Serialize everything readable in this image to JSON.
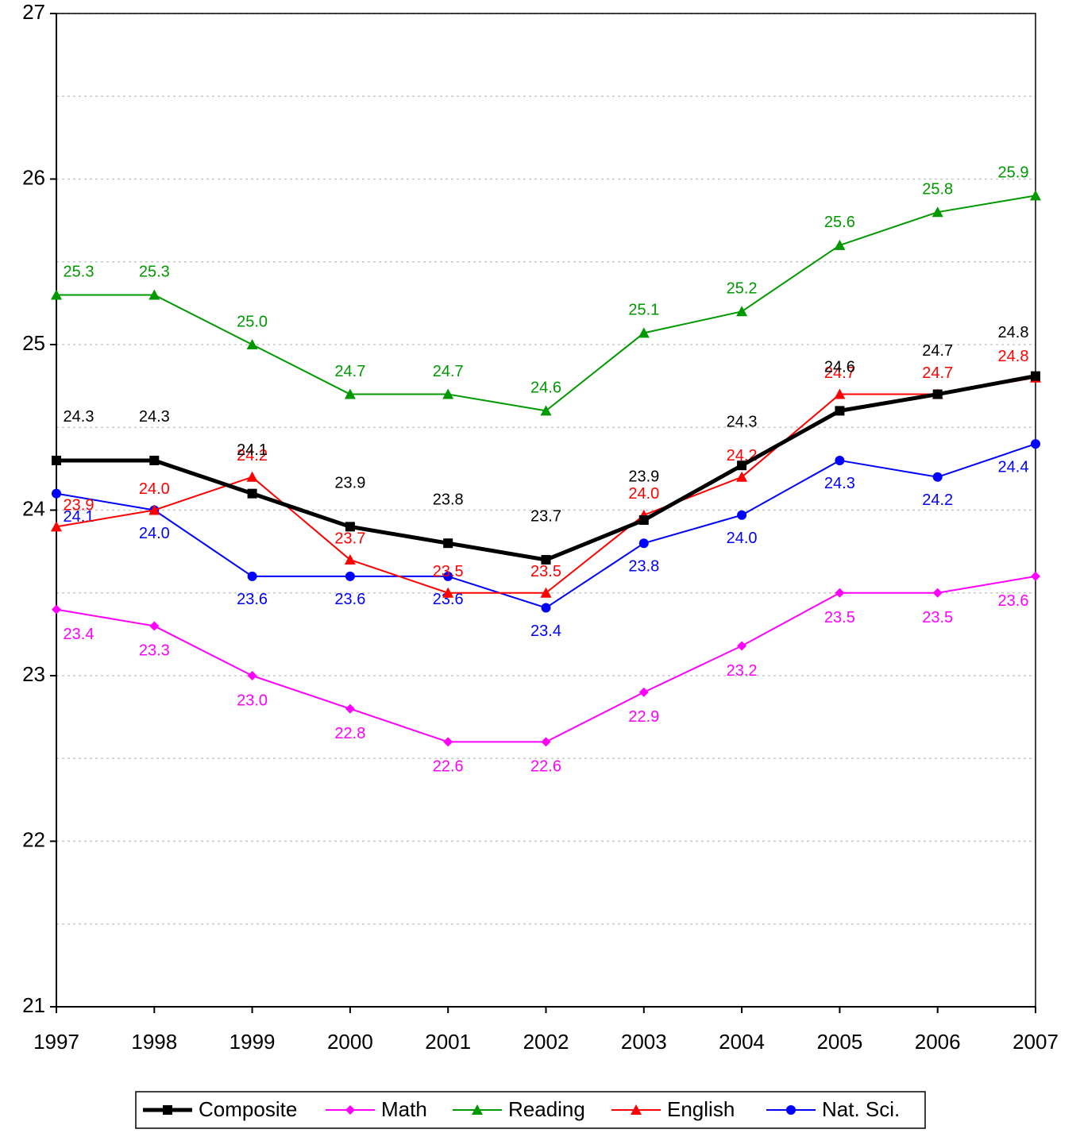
{
  "chart_data": {
    "type": "line",
    "categories": [
      "1997",
      "1998",
      "1999",
      "2000",
      "2001",
      "2002",
      "2003",
      "2004",
      "2005",
      "2006",
      "2007"
    ],
    "ylim": [
      21,
      27
    ],
    "yticks": [
      21,
      22,
      23,
      24,
      25,
      26,
      27
    ],
    "minor_grid": [
      21.5,
      22.5,
      23.5,
      24.5,
      25.5,
      26.5
    ],
    "grid": true,
    "legend": "bottom",
    "series": [
      {
        "name": "Composite",
        "color": "#000000",
        "marker": "square",
        "width": 5,
        "values": [
          24.3,
          24.3,
          24.1,
          23.9,
          23.8,
          23.7,
          23.94,
          24.27,
          24.6,
          24.7,
          24.81
        ],
        "value_labels": [
          "24.3",
          "24.3",
          "24.1",
          "23.9",
          "23.8",
          "23.7",
          "23.9",
          "24.3",
          "24.6",
          "24.7",
          "24.8"
        ]
      },
      {
        "name": "Math",
        "color": "#ff00ff",
        "marker": "diamond",
        "width": 2,
        "values": [
          23.4,
          23.3,
          23.0,
          22.8,
          22.6,
          22.6,
          22.9,
          23.18,
          23.5,
          23.5,
          23.6
        ],
        "value_labels": [
          "23.4",
          "23.3",
          "23.0",
          "22.8",
          "22.6",
          "22.6",
          "22.9",
          "23.2",
          "23.5",
          "23.5",
          "23.6"
        ]
      },
      {
        "name": "Reading",
        "color": "#009900",
        "marker": "triangle",
        "width": 2,
        "values": [
          25.3,
          25.3,
          25.0,
          24.7,
          24.7,
          24.6,
          25.07,
          25.2,
          25.6,
          25.8,
          25.9
        ],
        "value_labels": [
          "25.3",
          "25.3",
          "25.0",
          "24.7",
          "24.7",
          "24.6",
          "25.1",
          "25.2",
          "25.6",
          "25.8",
          "25.9"
        ]
      },
      {
        "name": "English",
        "color": "#ff0000",
        "marker": "triangle",
        "width": 2,
        "values": [
          23.9,
          24.0,
          24.2,
          23.7,
          23.5,
          23.5,
          23.97,
          24.2,
          24.7,
          24.7,
          24.8
        ],
        "value_labels": [
          "23.9",
          "24.0",
          "24.2",
          "23.7",
          "23.5",
          "23.5",
          "24.0",
          "24.2",
          "24.7",
          "24.7",
          "24.8"
        ]
      },
      {
        "name": "Nat. Sci.",
        "color": "#0000ff",
        "marker": "circle",
        "width": 2,
        "values": [
          24.1,
          24.0,
          23.6,
          23.6,
          23.6,
          23.41,
          23.8,
          23.97,
          24.3,
          24.2,
          24.4
        ],
        "value_labels": [
          "24.1",
          "24.0",
          "23.6",
          "23.6",
          "23.6",
          "23.4",
          "23.8",
          "24.0",
          "24.3",
          "24.2",
          "24.4"
        ]
      }
    ]
  }
}
